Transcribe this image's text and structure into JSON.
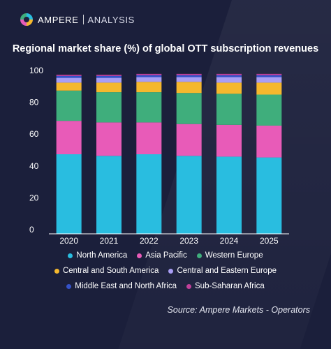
{
  "brand": {
    "name": "AMPERE",
    "sub": "ANALYSIS"
  },
  "source": "Source: Ampere Markets - Operators",
  "chart_data": {
    "type": "bar",
    "stacked": true,
    "title": "Regional market share (%) of global OTT subscription revenues",
    "xlabel": "",
    "ylabel": "",
    "ylim": [
      0,
      100
    ],
    "yticks": [
      0,
      20,
      40,
      60,
      80,
      100
    ],
    "grid": false,
    "legend_position": "bottom",
    "categories": [
      "2020",
      "2021",
      "2022",
      "2023",
      "2024",
      "2025"
    ],
    "series": [
      {
        "name": "North America",
        "color": "#29bde0",
        "values": [
          50,
          49,
          50,
          49,
          48.5,
          48
        ]
      },
      {
        "name": "Asia Pacific",
        "color": "#e85bb8",
        "values": [
          21,
          21,
          20,
          20,
          20,
          20
        ]
      },
      {
        "name": "Western Europe",
        "color": "#3fae7c",
        "values": [
          19,
          19,
          19,
          19.5,
          19.5,
          19.5
        ]
      },
      {
        "name": "Central and South America",
        "color": "#f5b82e",
        "values": [
          5,
          6,
          6.5,
          7,
          7,
          7.5
        ]
      },
      {
        "name": "Central and Eastern Europe",
        "color": "#a99ef5",
        "values": [
          3,
          3,
          3,
          3,
          3.5,
          3.5
        ]
      },
      {
        "name": "Middle East and North Africa",
        "color": "#3552c9",
        "values": [
          1.2,
          1.2,
          1.2,
          1.2,
          1.2,
          1.2
        ]
      },
      {
        "name": "Sub-Saharan Africa",
        "color": "#c2409a",
        "values": [
          0.8,
          0.8,
          0.8,
          0.8,
          0.8,
          0.8
        ]
      }
    ]
  }
}
